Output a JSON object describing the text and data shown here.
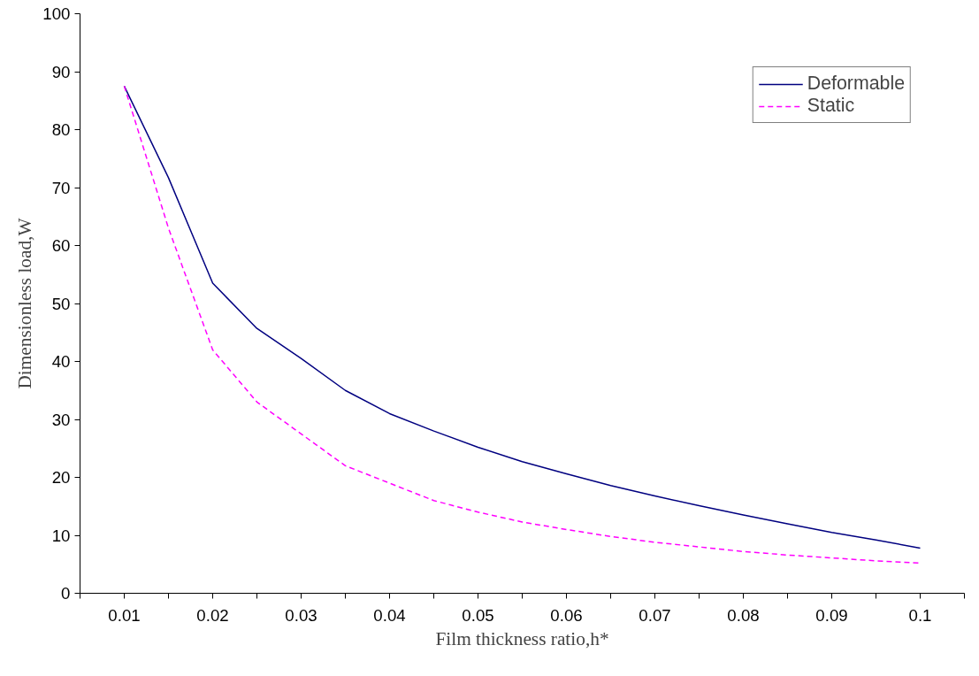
{
  "chart_data": {
    "type": "line",
    "xlabel": "Film thickness ratio,h*",
    "ylabel": "Dimensionless load,W",
    "x": [
      0.01,
      0.015,
      0.02,
      0.025,
      0.03,
      0.035,
      0.04,
      0.045,
      0.05,
      0.055,
      0.06,
      0.065,
      0.07,
      0.075,
      0.08,
      0.085,
      0.09,
      0.095,
      0.1
    ],
    "series": [
      {
        "name": "Deformable",
        "color": "#000080",
        "line_style": "solid",
        "values": [
          87.5,
          71.7,
          53.5,
          45.7,
          40.5,
          35,
          31,
          28,
          25.2,
          22.7,
          20.6,
          18.6,
          16.8,
          15.1,
          13.5,
          12,
          10.5,
          9.2,
          7.8
        ]
      },
      {
        "name": "Static",
        "color": "#ff00ff",
        "line_style": "dashed",
        "values": [
          87.5,
          63,
          42,
          33,
          27.5,
          22,
          19,
          16,
          14,
          12.3,
          11,
          9.8,
          8.8,
          8,
          7.2,
          6.6,
          6.1,
          5.6,
          5.2
        ]
      }
    ],
    "xlim": [
      0.005,
      0.105
    ],
    "xticks": [
      {
        "value": 0.005,
        "label": null
      },
      0.01,
      {
        "value": 0.015,
        "label": null
      },
      0.02,
      {
        "value": 0.025,
        "label": null
      },
      0.03,
      {
        "value": 0.035,
        "label": null
      },
      0.04,
      {
        "value": 0.045,
        "label": null
      },
      0.05,
      {
        "value": 0.055,
        "label": null
      },
      0.06,
      {
        "value": 0.065,
        "label": null
      },
      0.07,
      {
        "value": 0.075,
        "label": null
      },
      0.08,
      {
        "value": 0.085,
        "label": null
      },
      0.09,
      {
        "value": 0.095,
        "label": null
      },
      0.1,
      {
        "value": 0.105,
        "label": null
      }
    ],
    "ylim": [
      0,
      100
    ],
    "yticks": [
      0,
      10,
      20,
      30,
      40,
      50,
      60,
      70,
      80,
      90,
      100
    ],
    "grid": false,
    "legend": "top right",
    "marker": "none"
  }
}
